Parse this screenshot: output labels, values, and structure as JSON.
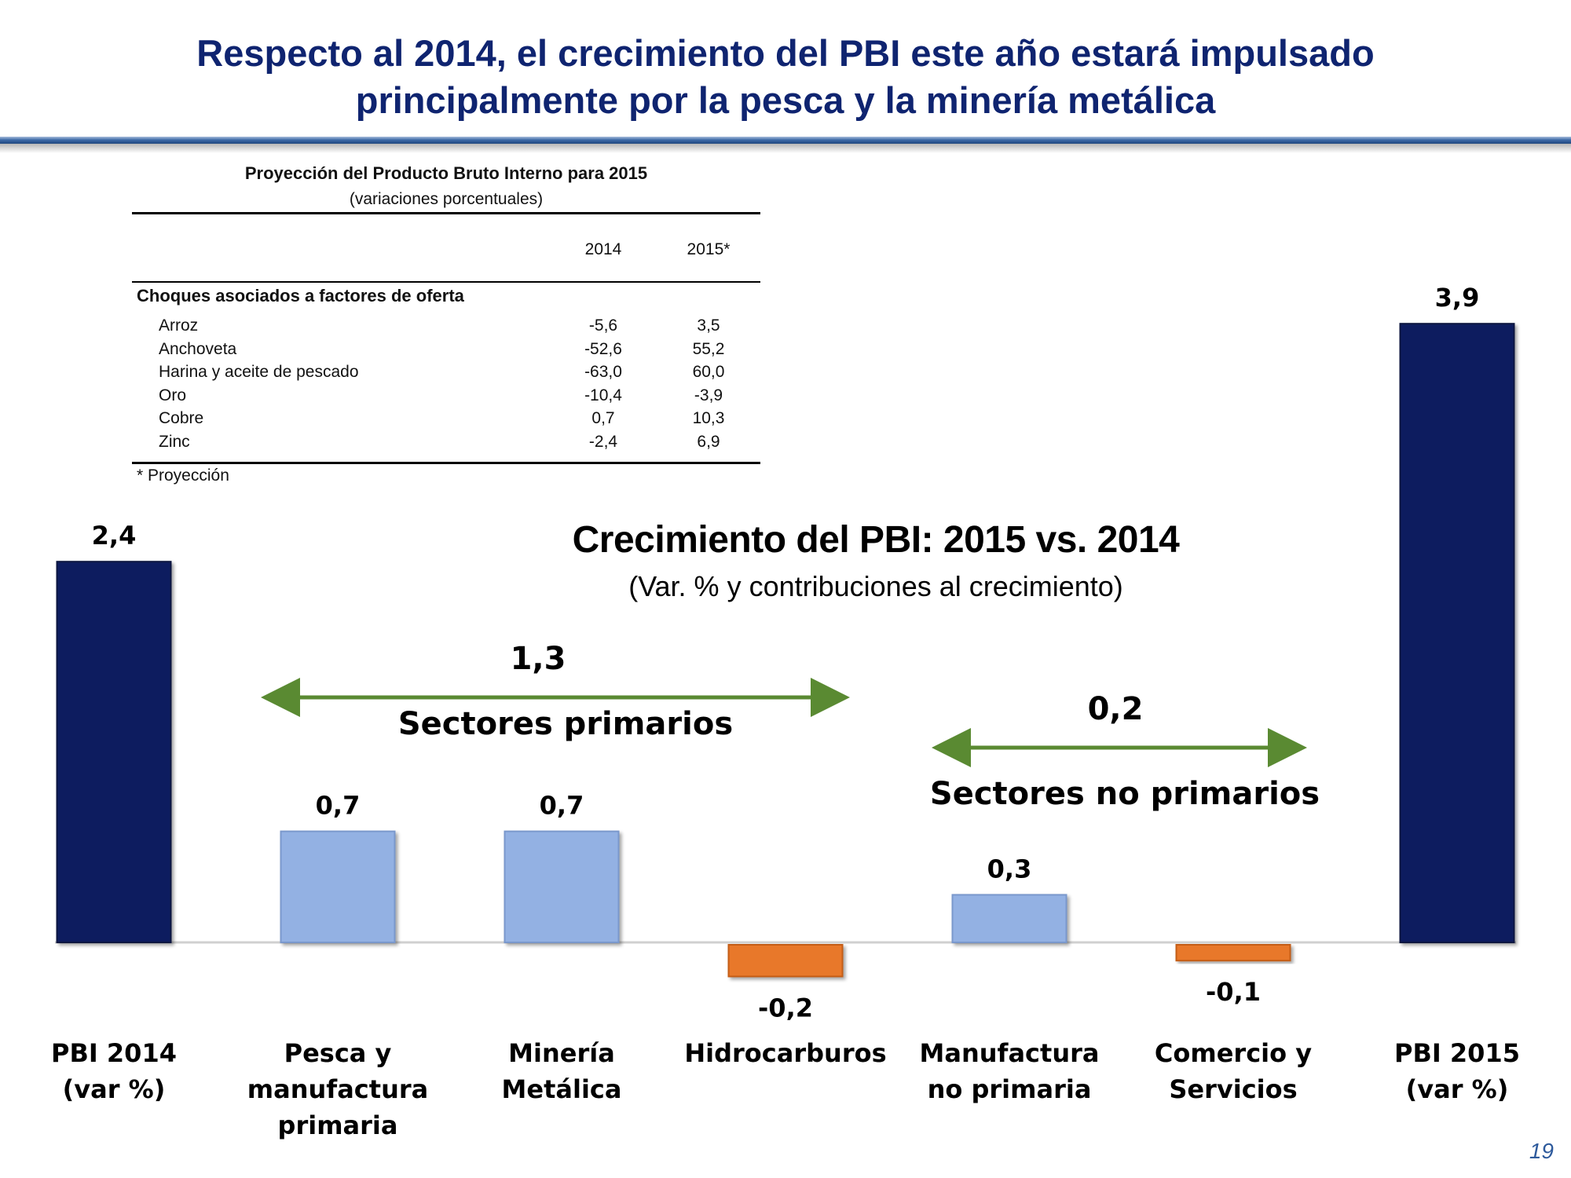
{
  "slide": {
    "title_line1": "Respecto al 2014, el crecimiento del PBI este año estará impulsado",
    "title_line2": "principalmente por la pesca y la minería metálica",
    "page_number": "19"
  },
  "table": {
    "title": "Proyección del Producto Bruto Interno para 2015",
    "subtitle": "(variaciones porcentuales)",
    "col_2014": "2014",
    "col_2015": "2015*",
    "section": "Choques asociados a factores de oferta",
    "rows": [
      {
        "label": "Arroz",
        "v2014": "-5,6",
        "v2015": "3,5"
      },
      {
        "label": "Anchoveta",
        "v2014": "-52,6",
        "v2015": "55,2"
      },
      {
        "label": "Harina y aceite de pescado",
        "v2014": "-63,0",
        "v2015": "60,0"
      },
      {
        "label": "Oro",
        "v2014": "-10,4",
        "v2015": "-3,9"
      },
      {
        "label": "Cobre",
        "v2014": "0,7",
        "v2015": "10,3"
      },
      {
        "label": "Zinc",
        "v2014": "-2,4",
        "v2015": "6,9"
      }
    ],
    "note": "* Proyección"
  },
  "chart_data": {
    "type": "bar",
    "title": "Crecimiento del PBI: 2015 vs. 2014",
    "subtitle": "(Var. % y contribuciones al crecimiento)",
    "categories": [
      [
        "PBI 2014",
        "(var %)"
      ],
      [
        "Pesca y",
        "manufactura",
        "primaria"
      ],
      [
        "Minería",
        "Metálica"
      ],
      [
        "Hidrocarburos"
      ],
      [
        "Manufactura",
        "no primaria"
      ],
      [
        "Comercio y",
        "Servicios"
      ],
      [
        "PBI 2015",
        "(var %)"
      ]
    ],
    "values": [
      2.4,
      0.7,
      0.7,
      -0.2,
      0.3,
      -0.1,
      3.9
    ],
    "value_labels": [
      "2,4",
      "0,7",
      "0,7",
      "-0,2",
      "0,3",
      "-0,1",
      "3,9"
    ],
    "bar_kinds": [
      "total",
      "positive",
      "positive",
      "negative",
      "positive",
      "negative",
      "total"
    ],
    "colors": {
      "total": "#0c1f5e",
      "positive": "#93b1e3",
      "negative": "#e8782c",
      "arrow": "#5a8a32",
      "title": "#0f2470"
    },
    "groups": [
      {
        "label": "Sectores primarios",
        "value_label": "1,3"
      },
      {
        "label": "Sectores no primarios",
        "value_label": "0,2"
      }
    ]
  }
}
